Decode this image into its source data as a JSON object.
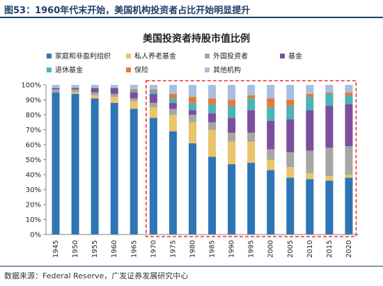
{
  "header": {
    "title": "图53：1960年代末开始，美国机构投资者占比开始明显提升"
  },
  "footer": {
    "source": "数据来源：Federal Reserve，广发证券发展研究中心"
  },
  "chart_data": {
    "type": "bar",
    "stacked": true,
    "title": "美国投资者持股市值比例",
    "categories": [
      "1945",
      "1950",
      "1955",
      "1960",
      "1965",
      "1970",
      "1975",
      "1980",
      "1985",
      "1990",
      "1995",
      "2000",
      "2005",
      "2010",
      "2015",
      "2020"
    ],
    "ylim": [
      0,
      100
    ],
    "yticks": [
      "0%",
      "10%",
      "20%",
      "30%",
      "40%",
      "50%",
      "60%",
      "70%",
      "80%",
      "90%",
      "100%"
    ],
    "legend_position": "top",
    "highlight_box": {
      "from": "1970",
      "to": "2020",
      "color": "#e8322c",
      "style": "dashed"
    },
    "series": [
      {
        "name": "家庭和非盈利组织",
        "color": "#2e75b6",
        "values": [
          95,
          94,
          91,
          88,
          84,
          78,
          69,
          61,
          52,
          47,
          48,
          43,
          38,
          37,
          36,
          38
        ]
      },
      {
        "name": "私人养老基金",
        "color": "#e9c46a",
        "values": [
          0,
          1,
          2,
          4,
          5,
          7,
          11,
          14,
          18,
          15,
          14,
          7,
          7,
          4,
          3,
          2
        ]
      },
      {
        "name": "外国投资者",
        "color": "#a6a6a6",
        "values": [
          2,
          2,
          2,
          2,
          2,
          3,
          4,
          5,
          5,
          6,
          6,
          7,
          10,
          15,
          19,
          19
        ]
      },
      {
        "name": "基金",
        "color": "#7b4f9d",
        "values": [
          1,
          1,
          3,
          4,
          4,
          6,
          4,
          3,
          6,
          10,
          15,
          19,
          22,
          27,
          28,
          28
        ]
      },
      {
        "name": "退休基金",
        "color": "#4ab4b8",
        "values": [
          0,
          0,
          0,
          0,
          1,
          2,
          3,
          5,
          6,
          8,
          8,
          9,
          9,
          9,
          8,
          6
        ]
      },
      {
        "name": "保险",
        "color": "#e07b39",
        "values": [
          0,
          0,
          0,
          0,
          1,
          1,
          3,
          4,
          4,
          4,
          2,
          6,
          4,
          2,
          1,
          2
        ]
      },
      {
        "name": "其他机构",
        "color": "#a9bfe0",
        "values": [
          2,
          2,
          2,
          2,
          3,
          3,
          6,
          8,
          9,
          10,
          7,
          9,
          10,
          6,
          5,
          5
        ]
      }
    ]
  }
}
